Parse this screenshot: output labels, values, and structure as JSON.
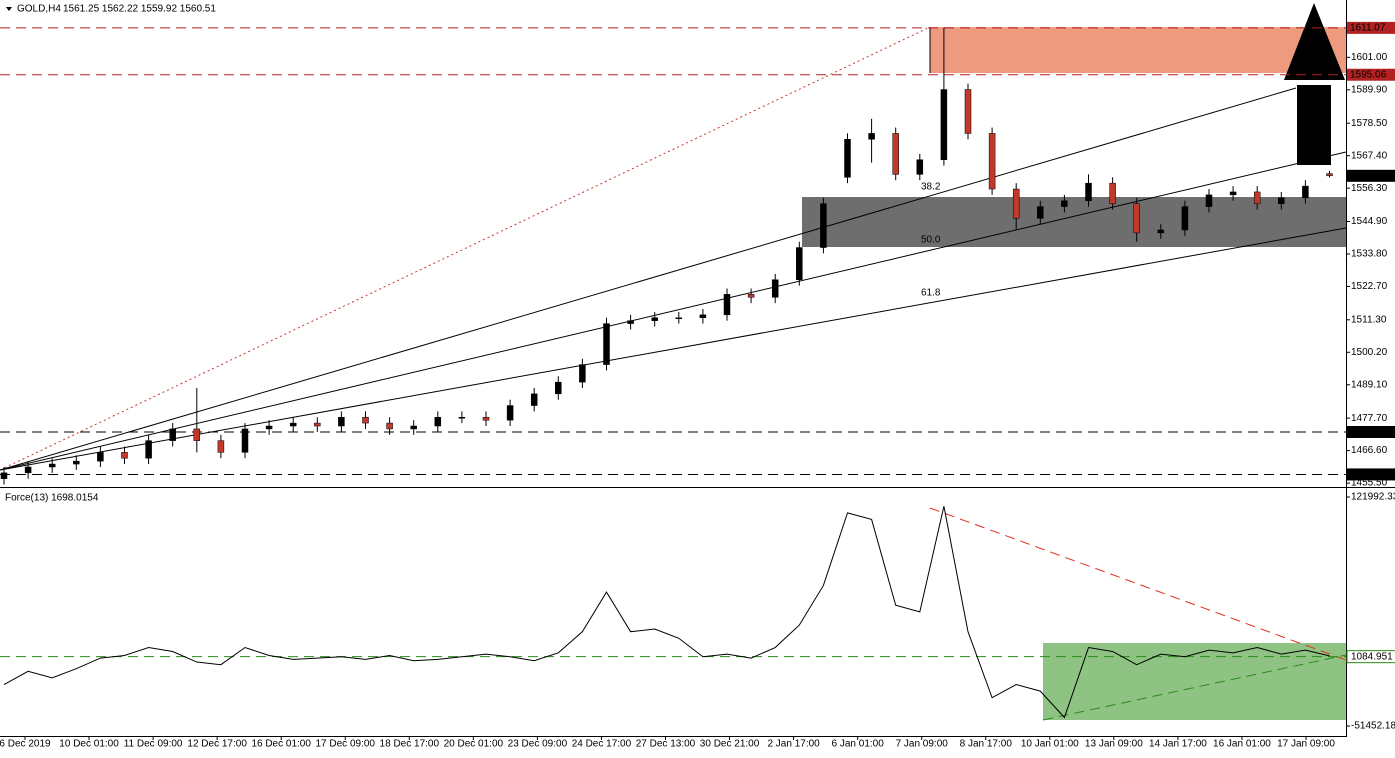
{
  "chart_data": [
    {
      "type": "candlestick",
      "title": "GOLD,H4",
      "subtitle": "1561.25 1562.22 1559.92 1560.51",
      "x_labels": [
        "6 Dec 2019",
        "10 Dec 01:00",
        "11 Dec 09:00",
        "12 Dec 17:00",
        "16 Dec 01:00",
        "17 Dec 09:00",
        "18 Dec 17:00",
        "20 Dec 01:00",
        "23 Dec 09:00",
        "24 Dec 17:00",
        "27 Dec 13:00",
        "30 Dec 21:00",
        "2 Jan 17:00",
        "6 Jan 01:00",
        "7 Jan 09:00",
        "8 Jan 17:00",
        "10 Jan 01:00",
        "13 Jan 09:00",
        "14 Jan 17:00",
        "16 Jan 01:00",
        "17 Jan 09:00"
      ],
      "open": [
        1457,
        1459,
        1461,
        1462,
        1463,
        1466,
        1464,
        1470,
        1474,
        1470,
        1466,
        1474,
        1475,
        1476,
        1475,
        1478,
        1476,
        1474,
        1475,
        1478,
        1478,
        1477,
        1482,
        1486,
        1490,
        1496,
        1510,
        1511,
        1512,
        1512,
        1513,
        1520,
        1519,
        1525,
        1536,
        1560,
        1573,
        1575,
        1561,
        1566,
        1590,
        1575,
        1556,
        1546,
        1550,
        1552,
        1558,
        1551,
        1541,
        1542,
        1550,
        1554,
        1555,
        1551,
        1553,
        1561.25
      ],
      "high": [
        1461,
        1463,
        1464,
        1465,
        1468,
        1468,
        1472,
        1476,
        1488,
        1472,
        1476,
        1477,
        1478,
        1478,
        1480,
        1480,
        1478,
        1477,
        1480,
        1480,
        1480,
        1484,
        1488,
        1492,
        1498,
        1512,
        1513,
        1514,
        1514,
        1515,
        1522,
        1522,
        1527,
        1538,
        1553,
        1575,
        1580,
        1577,
        1568,
        1611.07,
        1592,
        1577,
        1558,
        1552,
        1554,
        1561,
        1560,
        1553,
        1544,
        1552,
        1556,
        1557,
        1557,
        1555,
        1559,
        1562.22
      ],
      "low": [
        1455,
        1457,
        1459,
        1460,
        1461,
        1462,
        1462,
        1468,
        1466,
        1464,
        1464,
        1472,
        1473,
        1473,
        1473,
        1474,
        1472,
        1472,
        1473,
        1476,
        1475,
        1475,
        1480,
        1484,
        1488,
        1494,
        1508,
        1509,
        1510,
        1510,
        1511,
        1517,
        1517,
        1523,
        1534,
        1558,
        1565,
        1559,
        1559,
        1564,
        1573,
        1554,
        1542,
        1544,
        1548,
        1550,
        1549,
        1538,
        1539,
        1540,
        1548,
        1552,
        1549,
        1549,
        1551,
        1559.92
      ],
      "close": [
        1459,
        1461,
        1462,
        1463,
        1466,
        1464,
        1470,
        1474,
        1470,
        1466,
        1474,
        1475,
        1476,
        1475,
        1478,
        1476,
        1474,
        1475,
        1478,
        1478,
        1477,
        1482,
        1486,
        1490,
        1496,
        1510,
        1511,
        1512,
        1512,
        1513,
        1520,
        1519,
        1525,
        1536,
        1551,
        1573,
        1575,
        1561,
        1566,
        1590,
        1575,
        1556,
        1546,
        1550,
        1552,
        1558,
        1551,
        1541,
        1542,
        1550,
        1554,
        1555,
        1551,
        1553,
        1557,
        1560.51
      ],
      "up_color": "#000000",
      "down_color": "#c0392b",
      "ylim": [
        1454.5,
        1620.6
      ],
      "yticks": [
        {
          "value": 1601.0,
          "label": "1601.00"
        },
        {
          "value": 1589.9,
          "label": "1589.90"
        },
        {
          "value": 1578.5,
          "label": "1578.50"
        },
        {
          "value": 1567.4,
          "label": "1567.40"
        },
        {
          "value": 1556.3,
          "label": "1556.30"
        },
        {
          "value": 1544.9,
          "label": "1544.90"
        },
        {
          "value": 1533.8,
          "label": "1533.80"
        },
        {
          "value": 1522.7,
          "label": "1522.70"
        },
        {
          "value": 1511.3,
          "label": "1511.30"
        },
        {
          "value": 1500.2,
          "label": "1500.20"
        },
        {
          "value": 1489.1,
          "label": "1489.10"
        },
        {
          "value": 1477.7,
          "label": "1477.70"
        },
        {
          "value": 1466.6,
          "label": "1466.60"
        },
        {
          "value": 1455.5,
          "label": "1455.50"
        }
      ],
      "levels": [
        {
          "value": 1611.07,
          "color": "#b22222"
        },
        {
          "value": 1595.06,
          "color": "#b22222"
        },
        {
          "value": 1472.96,
          "color": "#000000"
        },
        {
          "value": 1458.45,
          "color": "#000000"
        }
      ],
      "last_price": 1560.51,
      "resistance_zone": [
        1595.06,
        1611.07
      ],
      "support_zone": [
        1537.8,
        1553.5
      ],
      "fib_labels": [
        "38.2",
        "50.0",
        "61.8"
      ]
    },
    {
      "type": "line",
      "title": "Force(13) 1698.0154",
      "color": "#000000",
      "values": [
        -20000,
        -10000,
        -15000,
        -8000,
        0,
        2000,
        8000,
        5000,
        -3000,
        -5000,
        8000,
        2000,
        -1000,
        0,
        1000,
        -1000,
        2000,
        -2000,
        -1000,
        1000,
        3000,
        1000,
        -2000,
        4000,
        20000,
        50000,
        20000,
        22000,
        15000,
        1000,
        3000,
        0,
        8000,
        25000,
        55000,
        110000,
        105000,
        40000,
        35000,
        115000,
        20000,
        -30000,
        -20000,
        -25000,
        -45000,
        8000,
        5000,
        -5000,
        3000,
        1000,
        6000,
        4000,
        8000,
        3000,
        6000,
        1698.0154
      ],
      "ylim": [
        -59000,
        127300
      ],
      "yticks": [
        121992.33,
        1084.951,
        -51452.18
      ],
      "level": 1084.951
    }
  ]
}
